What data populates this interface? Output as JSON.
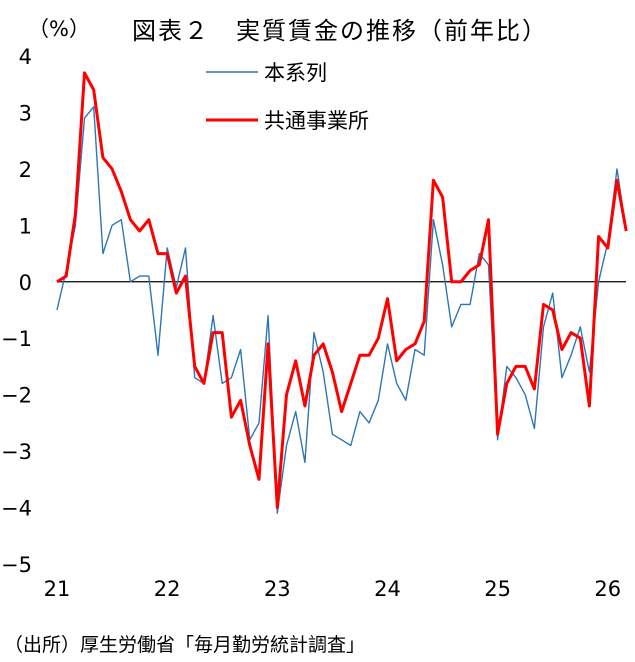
{
  "header": {
    "unit": "（%）",
    "title": "図表２　実質賃金の推移（前年比）"
  },
  "source": "（出所）厚生労働省「毎月勤労統計調査」",
  "colors": {
    "series1": "#2e75b6",
    "series2": "#ff0000",
    "zero_line": "#000000"
  },
  "chart_data": {
    "type": "line",
    "title": "図表２　実質賃金の推移（前年比）",
    "ylabel": "（%）",
    "xlabel": "",
    "ylim": [
      -5,
      4
    ],
    "yticks": [
      4,
      3,
      2,
      1,
      0,
      -1,
      -2,
      -3,
      -4,
      -5
    ],
    "ytick_labels": [
      "4",
      "3",
      "2",
      "1",
      "0",
      "−1",
      "−2",
      "−3",
      "−4",
      "−5"
    ],
    "x_start": "2021-01",
    "xticks": [
      {
        "label": "21",
        "month_index": 0
      },
      {
        "label": "22",
        "month_index": 12
      },
      {
        "label": "23",
        "month_index": 24
      },
      {
        "label": "24",
        "month_index": 36
      },
      {
        "label": "25",
        "month_index": 48
      },
      {
        "label": "26",
        "month_index": 60
      }
    ],
    "zero_line": true,
    "grid": false,
    "legend_position": "top-center",
    "series": [
      {
        "name": "本系列",
        "values": [
          -0.5,
          0.2,
          1.0,
          2.9,
          3.1,
          0.5,
          1.0,
          1.1,
          0.0,
          0.1,
          0.1,
          -1.3,
          0.6,
          -0.1,
          0.6,
          -1.7,
          -1.8,
          -0.6,
          -1.8,
          -1.7,
          -1.2,
          -2.8,
          -2.5,
          -0.6,
          -4.1,
          -2.9,
          -2.3,
          -3.2,
          -0.9,
          -1.6,
          -2.7,
          -2.8,
          -2.9,
          -2.3,
          -2.5,
          -2.1,
          -1.1,
          -1.8,
          -2.1,
          -1.2,
          -1.3,
          1.1,
          0.3,
          -0.8,
          -0.4,
          -0.4,
          0.5,
          0.3,
          -2.8,
          -1.5,
          -1.7,
          -2.0,
          -2.6,
          -0.8,
          -0.2,
          -1.7,
          -1.3,
          -0.8,
          -1.6,
          -0.0,
          0.7,
          2.0,
          0.9
        ]
      },
      {
        "name": "共通事業所",
        "values": [
          0.0,
          0.1,
          1.2,
          3.7,
          3.4,
          2.2,
          2.0,
          1.6,
          1.1,
          0.9,
          1.1,
          0.5,
          0.5,
          -0.2,
          0.1,
          -1.5,
          -1.8,
          -0.9,
          -0.9,
          -2.4,
          -2.1,
          -2.9,
          -3.5,
          -1.1,
          -4.0,
          -2.0,
          -1.4,
          -2.2,
          -1.3,
          -1.1,
          -1.6,
          -2.3,
          -1.8,
          -1.3,
          -1.3,
          -1.0,
          -0.3,
          -1.4,
          -1.2,
          -1.1,
          -0.7,
          1.8,
          1.5,
          0.0,
          0.0,
          0.2,
          0.3,
          1.1,
          -2.7,
          -1.8,
          -1.5,
          -1.5,
          -1.9,
          -0.4,
          -0.5,
          -1.2,
          -0.9,
          -1.0,
          -2.2,
          0.8,
          0.6,
          1.8,
          0.9
        ]
      }
    ]
  }
}
